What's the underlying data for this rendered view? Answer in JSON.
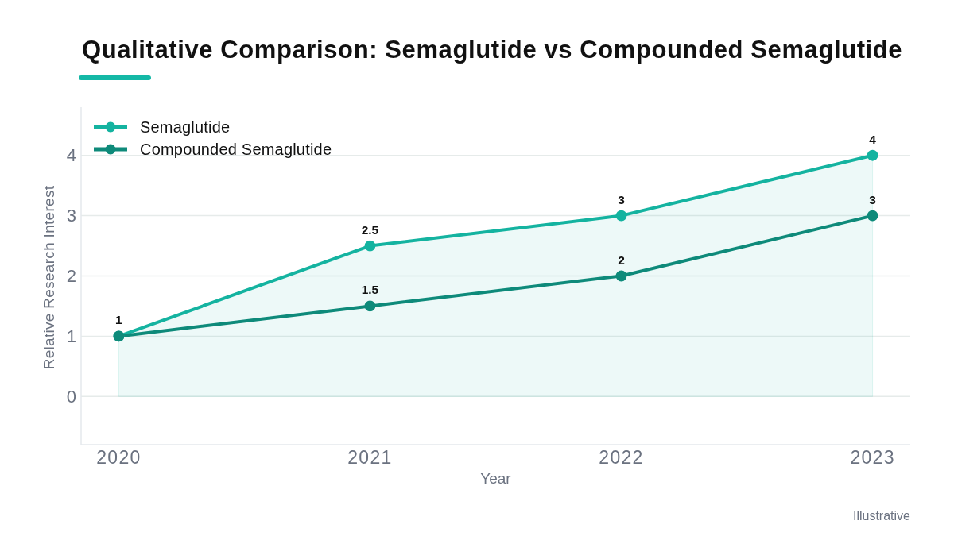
{
  "chart_data": {
    "type": "line",
    "title": "Qualitative Comparison: Semaglutide vs Compounded Semaglutide",
    "xlabel": "Year",
    "ylabel": "Relative Research Interest",
    "x": [
      2020,
      2021,
      2022,
      2023
    ],
    "xlim": [
      2019.85,
      2023.15
    ],
    "xticks": [
      2020,
      2021,
      2022,
      2023
    ],
    "ylim": [
      -0.8,
      4.8
    ],
    "yticks": [
      0,
      1,
      2,
      3,
      4
    ],
    "series": [
      {
        "name": "Semaglutide",
        "type": "area",
        "color": "#14b3a0",
        "values": [
          1,
          2.5,
          3,
          4
        ],
        "value_labels": [
          "1",
          "2.5",
          "3",
          "4"
        ]
      },
      {
        "name": "Compounded Semaglutide",
        "color": "#0e8a7a",
        "values": [
          1,
          1.5,
          2,
          3
        ],
        "value_labels": [
          null,
          "1.5",
          "2",
          "3"
        ]
      }
    ],
    "grid": "y",
    "legend": "top left",
    "marker": "circle",
    "annotations": [
      "Illustrative"
    ]
  }
}
